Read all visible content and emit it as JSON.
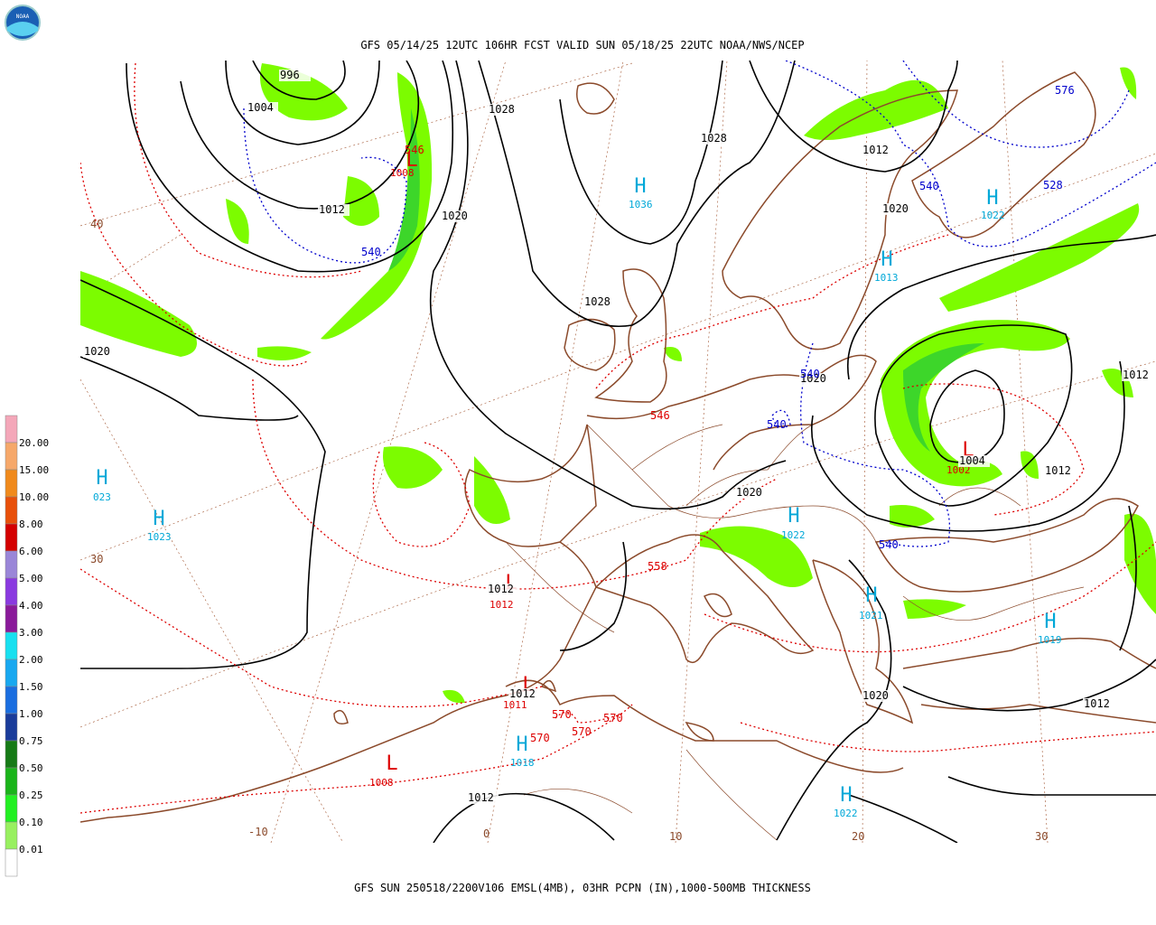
{
  "header": {
    "title": "GFS 05/14/25 12UTC 106HR FCST VALID SUN 05/18/25 22UTC NOAA/NWS/NCEP"
  },
  "footer": {
    "caption": "GFS SUN 250518/2200V106 EMSL(4MB), 03HR PCPN (IN),1000-500MB THICKNESS"
  },
  "logo": {
    "text": "NOAA"
  },
  "legend": {
    "labels": [
      "20.00",
      "15.00",
      "10.00",
      "8.00",
      "6.00",
      "5.00",
      "4.00",
      "3.00",
      "2.00",
      "1.50",
      "1.00",
      "0.75",
      "0.50",
      "0.25",
      "0.10",
      "0.01"
    ],
    "colors": [
      "#f4a7b9",
      "#f6a86a",
      "#f08a1c",
      "#e8500a",
      "#d40000",
      "#9a86d8",
      "#8a3ae0",
      "#8a1a9a",
      "#18e0f0",
      "#18a8f0",
      "#1a6ee0",
      "#1a3c9a",
      "#167a16",
      "#1ab41a",
      "#22f022",
      "#98f060",
      "#ffffff"
    ]
  },
  "highs": [
    {
      "letter": "H",
      "pressure": "1036"
    },
    {
      "letter": "H",
      "pressure": "1023"
    },
    {
      "letter": "H",
      "pressure": "023"
    },
    {
      "letter": "H",
      "pressure": "1013"
    },
    {
      "letter": "H",
      "pressure": "1022"
    },
    {
      "letter": "H",
      "pressure": "1022"
    },
    {
      "letter": "H",
      "pressure": "1021"
    },
    {
      "letter": "H",
      "pressure": "1019"
    },
    {
      "letter": "H",
      "pressure": "1018"
    },
    {
      "letter": "H",
      "pressure": "1022"
    }
  ],
  "lows": [
    {
      "letter": "L",
      "pressure": "1008"
    },
    {
      "letter": "L",
      "pressure": "1002"
    },
    {
      "letter": "L",
      "pressure": "1012"
    },
    {
      "letter": "L",
      "pressure": "1011"
    },
    {
      "letter": "L",
      "pressure": "1008"
    }
  ],
  "isobar_labels": [
    "996",
    "1004",
    "1012",
    "1020",
    "1028",
    "1028",
    "1028",
    "1020",
    "1012",
    "1020",
    "1020",
    "1020",
    "1004",
    "1012",
    "1012",
    "1012",
    "1012",
    "1012",
    "1020",
    "1012"
  ],
  "thickness_labels": [
    "540",
    "540",
    "528",
    "576",
    "540",
    "540",
    "540",
    "546",
    "546",
    "558",
    "570",
    "570",
    "570",
    "570"
  ],
  "grid_labels": [
    "40",
    "30",
    "-10",
    "0",
    "10",
    "20",
    "30"
  ]
}
